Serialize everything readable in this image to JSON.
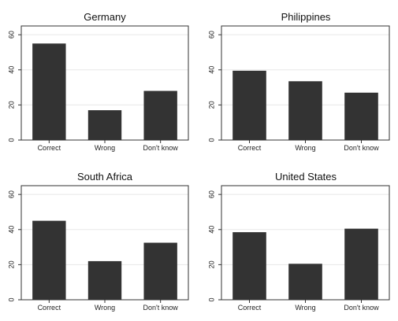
{
  "chart_data": [
    {
      "type": "bar",
      "title": "Germany",
      "categories": [
        "Correct",
        "Wrong",
        "Don't know"
      ],
      "values": [
        55,
        17,
        28
      ],
      "yticks": [
        0,
        20,
        40,
        60
      ],
      "ylim": [
        0,
        65
      ],
      "grid": true,
      "bar_color": "#333333"
    },
    {
      "type": "bar",
      "title": "Philippines",
      "categories": [
        "Correct",
        "Wrong",
        "Don't know"
      ],
      "values": [
        39.5,
        33.5,
        27
      ],
      "yticks": [
        0,
        20,
        40,
        60
      ],
      "ylim": [
        0,
        65
      ],
      "grid": true,
      "bar_color": "#333333"
    },
    {
      "type": "bar",
      "title": "South Africa",
      "categories": [
        "Correct",
        "Wrong",
        "Don't know"
      ],
      "values": [
        45,
        22,
        32.5
      ],
      "yticks": [
        0,
        20,
        40,
        60
      ],
      "ylim": [
        0,
        65
      ],
      "grid": true,
      "bar_color": "#333333"
    },
    {
      "type": "bar",
      "title": "United States",
      "categories": [
        "Correct",
        "Wrong",
        "Don't know"
      ],
      "values": [
        38.5,
        20.5,
        40.5
      ],
      "yticks": [
        0,
        20,
        40,
        60
      ],
      "ylim": [
        0,
        65
      ],
      "grid": true,
      "bar_color": "#333333"
    }
  ]
}
